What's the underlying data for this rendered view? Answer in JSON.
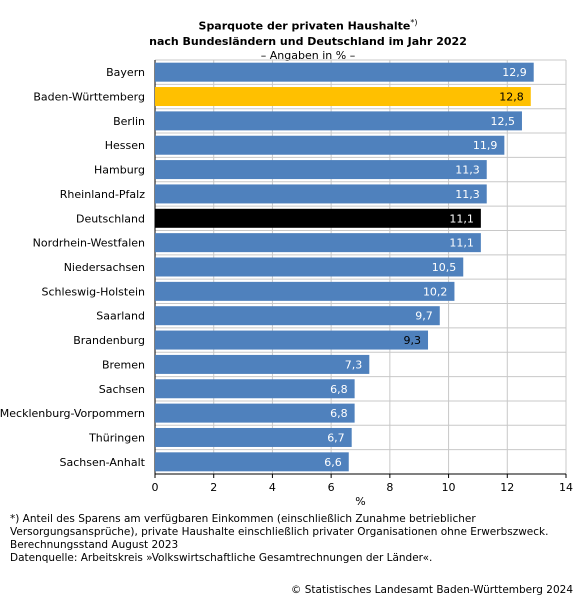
{
  "title": {
    "line1": "Sparquote der privaten Haushalte",
    "footnote_marker": "*)",
    "line2": "nach Bundesländern und Deutschland im Jahr 2022",
    "subtitle": "– Angaben in % –"
  },
  "chart_data": {
    "type": "bar",
    "orientation": "horizontal",
    "categories": [
      "Bayern",
      "Baden-Württemberg",
      "Berlin",
      "Hessen",
      "Hamburg",
      "Rheinland-Pfalz",
      "Deutschland",
      "Nordrhein-Westfalen",
      "Niedersachsen",
      "Schleswig-Holstein",
      "Saarland",
      "Brandenburg",
      "Bremen",
      "Sachsen",
      "Mecklenburg-Vorpommern",
      "Thüringen",
      "Sachsen-Anhalt"
    ],
    "values": [
      12.9,
      12.8,
      12.5,
      11.9,
      11.3,
      11.3,
      11.1,
      11.1,
      10.5,
      10.2,
      9.7,
      9.3,
      7.3,
      6.8,
      6.8,
      6.7,
      6.6
    ],
    "value_labels": [
      "12,9",
      "12,8",
      "12,5",
      "11,9",
      "11,3",
      "11,3",
      "11,1",
      "11,1",
      "10,5",
      "10,2",
      "9,7",
      "9,3",
      "7,3",
      "6,8",
      "6,8",
      "6,7",
      "6,6"
    ],
    "bar_colors": [
      "#4f81bd",
      "#ffc000",
      "#4f81bd",
      "#4f81bd",
      "#4f81bd",
      "#4f81bd",
      "#000000",
      "#4f81bd",
      "#4f81bd",
      "#4f81bd",
      "#4f81bd",
      "#4f81bd",
      "#4f81bd",
      "#4f81bd",
      "#4f81bd",
      "#4f81bd",
      "#4f81bd"
    ],
    "value_label_colors": [
      "#ffffff",
      "#000000",
      "#ffffff",
      "#ffffff",
      "#ffffff",
      "#ffffff",
      "#ffffff",
      "#ffffff",
      "#ffffff",
      "#ffffff",
      "#ffffff",
      "#000000",
      "#ffffff",
      "#ffffff",
      "#ffffff",
      "#ffffff",
      "#ffffff"
    ],
    "xlim": [
      0,
      14
    ],
    "xticks": [
      0,
      2,
      4,
      6,
      8,
      10,
      12,
      14
    ],
    "xlabel": "%",
    "grid": true,
    "colors": {
      "default": "#4f81bd",
      "highlight": "#ffc000",
      "total": "#000000",
      "grid": "#c8c8c8"
    }
  },
  "footnote": {
    "lines": [
      "*) Anteil des Sparens am verfügbaren Einkommen (einschließlich Zunahme betrieblicher",
      "Versorgungsansprüche), private Haushalte einschließlich privater Organisationen ohne Erwerbszweck.",
      "Berechnungsstand August 2023",
      "Datenquelle: Arbeitskreis »Volkswirtschaftliche Gesamtrechnungen der Länder«."
    ]
  },
  "copyright": "© Statistisches Landesamt Baden-Württemberg 2024"
}
